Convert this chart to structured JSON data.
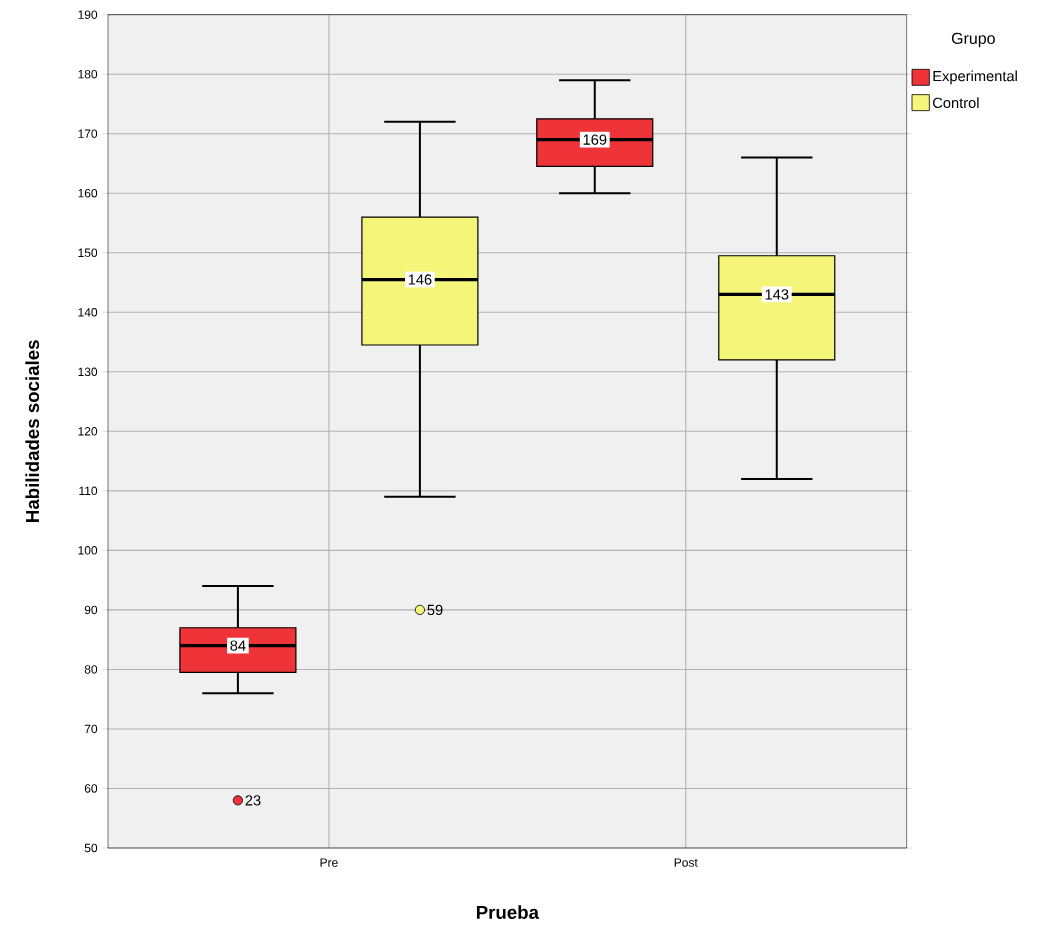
{
  "chart_data": {
    "type": "box",
    "xlabel": "Prueba",
    "ylabel": "Habilidades sociales",
    "legend_title": "Grupo",
    "categories": [
      "Pre",
      "Post"
    ],
    "series": [
      {
        "name": "Experimental",
        "color": "#ee3438",
        "boxes": [
          {
            "low": 76,
            "q1": 79.5,
            "median": 84,
            "q3": 87,
            "high": 94,
            "outliers": [
              58
            ]
          },
          {
            "low": 160,
            "q1": 164.5,
            "median": 169,
            "q3": 172.5,
            "high": 179
          }
        ],
        "value_labels": [
          "84",
          "169"
        ]
      },
      {
        "name": "Control",
        "color": "#f5f57a",
        "boxes": [
          {
            "low": 109,
            "q1": 134.5,
            "median": 145.5,
            "q3": 156,
            "high": 172,
            "outliers": [
              90
            ]
          },
          {
            "low": 112,
            "q1": 132,
            "median": 143,
            "q3": 149.5,
            "high": 166
          }
        ],
        "value_labels": [
          "146",
          "143"
        ]
      }
    ],
    "ylim": [
      50,
      190
    ],
    "yticks": [
      50,
      60,
      70,
      80,
      90,
      100,
      110,
      120,
      130,
      140,
      150,
      160,
      170,
      180,
      190
    ],
    "grid": true,
    "legend": "top right",
    "annotations": [
      "23",
      "59"
    ]
  }
}
